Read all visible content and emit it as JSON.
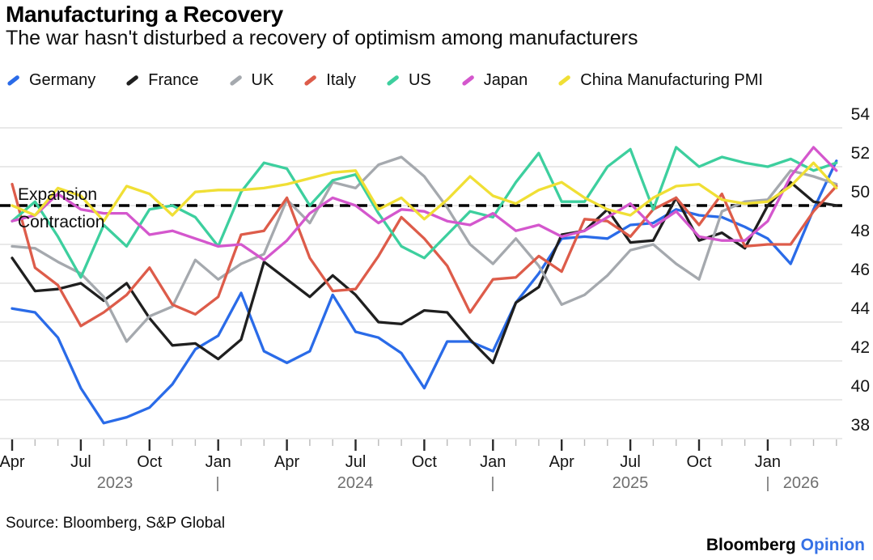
{
  "header": {
    "title": "Manufacturing a Recovery",
    "subtitle": "The war hasn't disturbed a recovery of optimism among manufacturers"
  },
  "legend": [
    {
      "label": "Germany",
      "color": "#2a6be8"
    },
    {
      "label": "France",
      "color": "#1f1f1f"
    },
    {
      "label": "UK",
      "color": "#a5a9ae"
    },
    {
      "label": "Italy",
      "color": "#dd5c4a"
    },
    {
      "label": "US",
      "color": "#3dcf9e"
    },
    {
      "label": "Japan",
      "color": "#d457cd"
    },
    {
      "label": "China Manufacturing PMI",
      "color": "#f0df35"
    }
  ],
  "annotations": {
    "expansion": "Expansion",
    "contraction": "Contraction"
  },
  "footer": {
    "source": "Source: Bloomberg, S&P Global",
    "brand": "Bloomberg",
    "brand_suffix": "Opinion",
    "brand_suffix_color": "#3571e6"
  },
  "chart_data": {
    "type": "line",
    "title": "Manufacturing a Recovery",
    "subtitle": "The war hasn't disturbed a recovery of optimism among manufacturers",
    "x": {
      "start": "2023-04",
      "end": "2026-04",
      "frequency": "monthly",
      "points": 37
    },
    "x_quarter_labels": [
      "Apr",
      "Jul",
      "Oct",
      "Jan",
      "Apr",
      "Jul",
      "Oct",
      "Jan",
      "Apr",
      "Jul",
      "Oct",
      "Jan"
    ],
    "x_year_labels": [
      "2023",
      "2024",
      "2025",
      "2026"
    ],
    "year_separator": "|",
    "yticks": [
      38,
      40,
      42,
      44,
      46,
      48,
      50,
      52,
      54
    ],
    "ylim": [
      37.4,
      55.0
    ],
    "ylabel": "",
    "xlabel": "",
    "grid": "horizontal",
    "legend_position": "top",
    "threshold": {
      "value": 50,
      "style": "dashed",
      "color": "#000000",
      "label_above": "Expansion",
      "label_below": "Contraction"
    },
    "series": [
      {
        "name": "Germany",
        "color": "#2a6be8",
        "values": [
          44.7,
          44.5,
          43.2,
          40.6,
          38.8,
          39.1,
          39.6,
          40.8,
          42.6,
          43.3,
          45.5,
          42.5,
          41.9,
          42.5,
          45.4,
          43.5,
          43.2,
          42.4,
          40.6,
          43.0,
          43.0,
          42.5,
          45.0,
          46.5,
          48.3,
          48.4,
          48.3,
          49.0,
          49.1,
          49.8,
          49.5,
          49.4,
          48.9,
          48.3,
          47.0,
          49.8,
          52.3
        ]
      },
      {
        "name": "France",
        "color": "#1f1f1f",
        "values": [
          47.3,
          45.6,
          45.7,
          46.0,
          45.1,
          46.0,
          44.2,
          42.8,
          42.9,
          42.1,
          43.1,
          47.1,
          46.2,
          45.3,
          46.4,
          45.4,
          44.0,
          43.9,
          44.6,
          44.5,
          43.1,
          41.9,
          45.0,
          45.8,
          48.5,
          48.7,
          49.8,
          48.1,
          48.2,
          50.4,
          48.2,
          48.6,
          47.8,
          50.0,
          51.2,
          50.2,
          50.0
        ]
      },
      {
        "name": "UK",
        "color": "#a5a9ae",
        "values": [
          47.9,
          47.8,
          47.1,
          46.5,
          45.3,
          43.0,
          44.3,
          44.8,
          47.2,
          46.2,
          47.0,
          47.5,
          50.3,
          49.1,
          51.2,
          50.9,
          52.1,
          52.5,
          51.5,
          49.9,
          48.0,
          47.0,
          48.3,
          46.9,
          44.9,
          45.4,
          46.4,
          47.7,
          48.0,
          47.0,
          46.2,
          49.7,
          50.2,
          50.3,
          51.8,
          51.5,
          51.1
        ]
      },
      {
        "name": "Italy",
        "color": "#dd5c4a",
        "values": [
          51.1,
          46.8,
          45.9,
          43.8,
          44.5,
          45.4,
          46.8,
          44.9,
          44.4,
          45.3,
          48.5,
          48.7,
          50.4,
          47.3,
          45.6,
          45.7,
          47.4,
          49.4,
          48.3,
          46.9,
          44.5,
          46.2,
          46.3,
          47.4,
          46.6,
          49.3,
          49.2,
          48.4,
          49.8,
          50.4,
          49.0,
          50.6,
          47.9,
          48.0,
          48.0,
          49.7,
          51.0
        ]
      },
      {
        "name": "US",
        "color": "#3dcf9e",
        "values": [
          49.2,
          50.2,
          48.4,
          46.3,
          49.0,
          47.9,
          49.8,
          50.0,
          49.4,
          47.9,
          50.7,
          52.2,
          51.9,
          50.0,
          51.3,
          51.6,
          49.6,
          47.9,
          47.3,
          48.5,
          49.7,
          49.4,
          51.2,
          52.7,
          50.2,
          50.2,
          52.0,
          52.9,
          49.8,
          53.0,
          52.0,
          52.5,
          52.2,
          52.0,
          52.4,
          51.8,
          52.2
        ]
      },
      {
        "name": "Japan",
        "color": "#d457cd",
        "values": [
          49.2,
          49.5,
          50.6,
          49.8,
          49.6,
          49.6,
          48.5,
          48.7,
          48.3,
          47.9,
          48.0,
          47.2,
          48.2,
          49.6,
          50.4,
          50.0,
          49.1,
          49.8,
          49.7,
          49.2,
          49.0,
          49.6,
          48.7,
          49.0,
          48.4,
          48.7,
          49.4,
          50.1,
          48.9,
          49.7,
          48.4,
          48.2,
          48.2,
          49.2,
          51.5,
          53.0,
          51.8
        ]
      },
      {
        "name": "China Manufacturing PMI",
        "color": "#f0df35",
        "values": [
          50.0,
          49.5,
          50.9,
          50.5,
          49.2,
          51.0,
          50.6,
          49.5,
          50.7,
          50.8,
          50.8,
          50.9,
          51.1,
          51.4,
          51.7,
          51.8,
          49.8,
          50.4,
          49.3,
          50.3,
          51.5,
          50.5,
          50.1,
          50.8,
          51.2,
          50.4,
          49.8,
          49.5,
          50.4,
          51.0,
          51.1,
          50.3,
          50.1,
          50.2,
          51.0,
          52.2,
          50.9
        ]
      }
    ]
  }
}
